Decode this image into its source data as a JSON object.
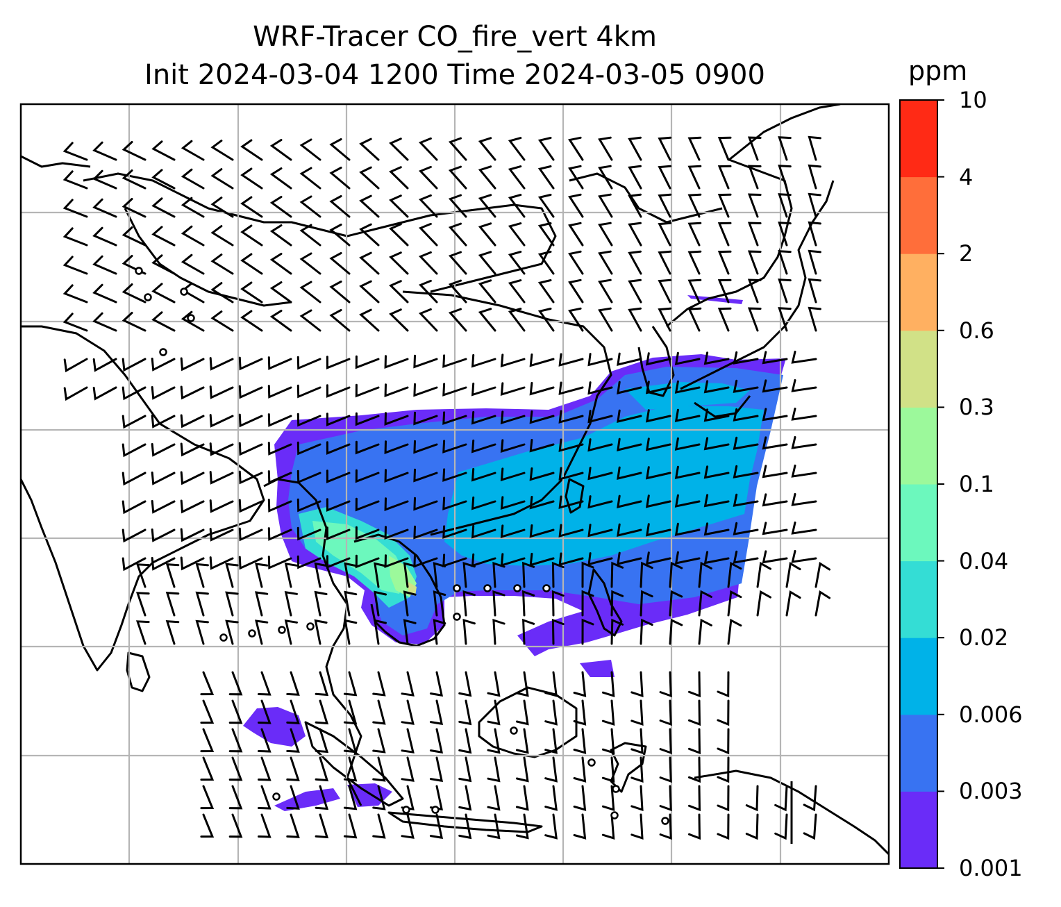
{
  "title": {
    "line1": "WRF-Tracer CO_fire_vert 4km",
    "line2": "Init 2024-03-04 1200 Time 2024-03-05 0900"
  },
  "colorbar": {
    "units": "ppm",
    "levels": [
      "0.001",
      "0.003",
      "0.006",
      "0.02",
      "0.04",
      "0.1",
      "0.3",
      "0.6",
      "2",
      "4",
      "10"
    ],
    "colors": [
      "#6a2cf8",
      "#3873f2",
      "#00b2e8",
      "#34ddd5",
      "#6cf8bd",
      "#9cf99b",
      "#d1e187",
      "#ffb061",
      "#ff6e3a",
      "#ff2a15"
    ]
  },
  "map": {
    "background": "#ffffff",
    "gridline_color": "#b5b5b5",
    "coastline_color": "#000000",
    "layers": [
      "CO tracer concentration (filled contours)",
      "wind barbs",
      "coastlines",
      "gridlines"
    ]
  }
}
